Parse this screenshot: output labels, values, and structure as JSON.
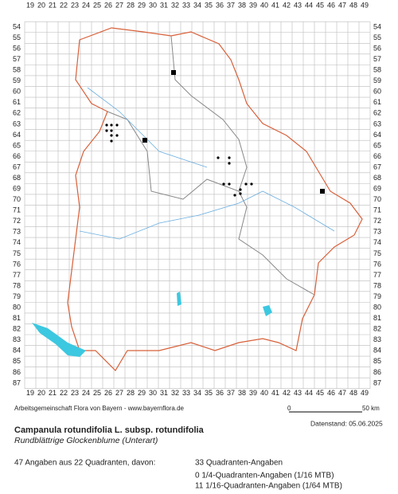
{
  "map": {
    "columns": [
      19,
      20,
      21,
      22,
      23,
      24,
      25,
      26,
      27,
      28,
      29,
      30,
      31,
      32,
      33,
      34,
      35,
      36,
      37,
      38,
      39,
      40,
      41,
      42,
      43,
      44,
      45,
      46,
      47,
      48,
      49
    ],
    "rows": [
      54,
      55,
      56,
      57,
      58,
      59,
      60,
      61,
      62,
      63,
      64,
      65,
      66,
      67,
      68,
      69,
      70,
      71,
      72,
      73,
      74,
      75,
      76,
      77,
      78,
      79,
      80,
      81,
      82,
      83,
      84,
      85,
      86,
      87
    ]
  },
  "footer": {
    "credit": "Arbeitsgemeinschaft Flora von Bayern - www.bayernflora.de",
    "scale_start": "0",
    "scale_end": "50 km",
    "date": "Datenstand: 05.06.2025",
    "title": "Campanula rotundifolia L. subsp. rotundifolia",
    "subtitle": "Rundblättrige Glockenblume (Unterart)",
    "summary": "47 Angaben aus 22 Quadranten, davon:",
    "counts": [
      "33 Quadranten-Angaben",
      "0 1/4-Quadranten-Angaben (1/16 MTB)",
      "11 1/16-Quadranten-Angaben (1/64 MTB)"
    ]
  }
}
